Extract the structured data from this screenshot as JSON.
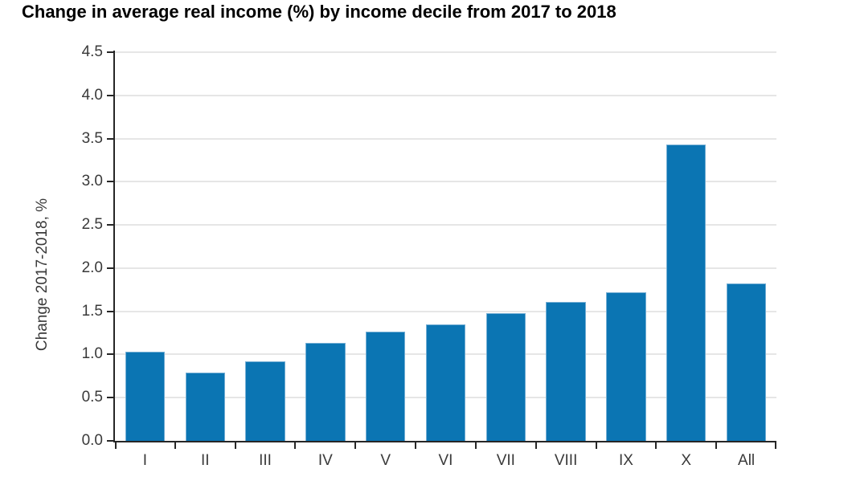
{
  "chart_data": {
    "type": "bar",
    "title": "Change in average real income (%) by income decile from 2017 to 2018",
    "categories": [
      "I",
      "II",
      "III",
      "IV",
      "V",
      "VI",
      "VII",
      "VIII",
      "IX",
      "X",
      "All"
    ],
    "values": [
      1.03,
      0.79,
      0.92,
      1.13,
      1.26,
      1.35,
      1.48,
      1.61,
      1.72,
      3.43,
      1.82
    ],
    "xlabel": "",
    "ylabel": "Change 2017-2018, %",
    "ylim": [
      0,
      4.5
    ],
    "ytick_step": 0.5,
    "ytick_labels": [
      "0.0",
      "0.5",
      "1.0",
      "1.5",
      "2.0",
      "2.5",
      "3.0",
      "3.5",
      "4.0",
      "4.5"
    ],
    "grid": true,
    "legend_position": "none",
    "bar_width_fraction": 0.66,
    "colors": {
      "bar_fill": "#0b75b3",
      "bar_edge": "#74aed4",
      "axis": "#262626",
      "gridline": "#e6e6e6",
      "tick_label": "#3a3a3a",
      "title": "#000000",
      "background": "#ffffff"
    }
  }
}
